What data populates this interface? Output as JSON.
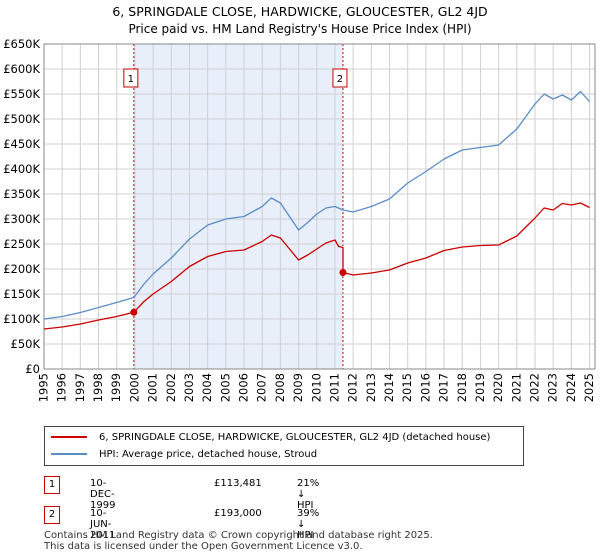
{
  "title_line1": "6, SPRINGDALE CLOSE, HARDWICKE, GLOUCESTER, GL2 4JD",
  "title_line2": "Price paid vs. HM Land Registry's House Price Index (HPI)",
  "colors": {
    "red": "#cc0000",
    "blue": "#5b8ec7",
    "shade": "#e8eefa",
    "grid": "#d0d0d0",
    "marker_border": "#cc0000"
  },
  "chart_data": {
    "type": "line",
    "title": "Price paid vs. HM Land Registry's House Price Index (HPI)",
    "xlabel": "",
    "ylabel": "",
    "xlim": [
      1995.0,
      2025.3
    ],
    "ylim": [
      0,
      650000
    ],
    "y_ticks": [
      0,
      50000,
      100000,
      150000,
      200000,
      250000,
      300000,
      350000,
      400000,
      450000,
      500000,
      550000,
      600000,
      650000
    ],
    "y_tick_labels": [
      "£0",
      "£50K",
      "£100K",
      "£150K",
      "£200K",
      "£250K",
      "£300K",
      "£350K",
      "£400K",
      "£450K",
      "£500K",
      "£550K",
      "£600K",
      "£650K"
    ],
    "x_ticks": [
      1995,
      1996,
      1997,
      1998,
      1999,
      2000,
      2001,
      2002,
      2003,
      2004,
      2005,
      2006,
      2007,
      2008,
      2009,
      2010,
      2011,
      2012,
      2013,
      2014,
      2015,
      2016,
      2017,
      2018,
      2019,
      2020,
      2021,
      2022,
      2023,
      2024,
      2025
    ],
    "x_tick_labels": [
      "1995",
      "1996",
      "1997",
      "1998",
      "1999",
      "2000",
      "2001",
      "2002",
      "2003",
      "2004",
      "2005",
      "2006",
      "2007",
      "2008",
      "2009",
      "2010",
      "2011",
      "2012",
      "2013",
      "2014",
      "2015",
      "2016",
      "2017",
      "2018",
      "2019",
      "2020",
      "2021",
      "2022",
      "2023",
      "2024",
      "2025"
    ],
    "shaded_region": [
      1999.94,
      2011.44
    ],
    "series": [
      {
        "name": "6, SPRINGDALE CLOSE, HARDWICKE, GLOUCESTER, GL2 4JD (detached house)",
        "color": "#cc0000",
        "x": [
          1995.0,
          1996.0,
          1997.0,
          1998.0,
          1999.0,
          1999.94,
          2000.5,
          2001.0,
          2002.0,
          2003.0,
          2004.0,
          2005.0,
          2006.0,
          2007.0,
          2007.5,
          2008.0,
          2008.5,
          2009.0,
          2009.5,
          2010.0,
          2010.5,
          2011.0,
          2011.2,
          2011.44,
          2011.44,
          2012.0,
          2013.0,
          2014.0,
          2015.0,
          2016.0,
          2017.0,
          2018.0,
          2019.0,
          2020.0,
          2021.0,
          2022.0,
          2022.5,
          2023.0,
          2023.5,
          2024.0,
          2024.5,
          2025.0
        ],
        "y": [
          80000,
          84000,
          90000,
          98000,
          105000,
          113481,
          135000,
          150000,
          175000,
          205000,
          225000,
          235000,
          238000,
          255000,
          268000,
          262000,
          240000,
          218000,
          228000,
          240000,
          252000,
          258000,
          245000,
          243000,
          193000,
          188000,
          192000,
          198000,
          212000,
          222000,
          237000,
          244000,
          247000,
          248000,
          266000,
          302000,
          322000,
          318000,
          331000,
          328000,
          332000,
          323000
        ]
      },
      {
        "name": "HPI: Average price, detached house, Stroud",
        "color": "#5b8ec7",
        "x": [
          1995.0,
          1996.0,
          1997.0,
          1998.0,
          1999.0,
          1999.94,
          2000.5,
          2001.0,
          2002.0,
          2003.0,
          2004.0,
          2005.0,
          2006.0,
          2007.0,
          2007.5,
          2008.0,
          2008.5,
          2009.0,
          2009.5,
          2010.0,
          2010.5,
          2011.0,
          2011.44,
          2012.0,
          2013.0,
          2014.0,
          2015.0,
          2016.0,
          2017.0,
          2018.0,
          2019.0,
          2020.0,
          2021.0,
          2022.0,
          2022.5,
          2023.0,
          2023.5,
          2024.0,
          2024.5,
          2025.0
        ],
        "y": [
          100000,
          105000,
          113000,
          123000,
          133000,
          143000,
          170000,
          190000,
          222000,
          260000,
          288000,
          300000,
          305000,
          325000,
          342000,
          332000,
          305000,
          278000,
          293000,
          310000,
          322000,
          325000,
          318000,
          314000,
          325000,
          340000,
          372000,
          395000,
          420000,
          438000,
          443000,
          448000,
          480000,
          530000,
          550000,
          540000,
          548000,
          538000,
          555000,
          535000
        ]
      }
    ],
    "annotations": [
      {
        "label": "1",
        "x": 1999.94,
        "y": 113481
      },
      {
        "label": "2",
        "x": 2011.44,
        "y": 193000
      }
    ]
  },
  "legend": {
    "red_label": "6, SPRINGDALE CLOSE, HARDWICKE, GLOUCESTER, GL2 4JD (detached house)",
    "blue_label": "HPI: Average price, detached house, Stroud"
  },
  "transactions": [
    {
      "id": "1",
      "date": "10-DEC-1999",
      "price": "£113,481",
      "hpi": "21% ↓ HPI"
    },
    {
      "id": "2",
      "date": "10-JUN-2011",
      "price": "£193,000",
      "hpi": "39% ↓ HPI"
    }
  ],
  "footer": {
    "line1": "Contains HM Land Registry data © Crown copyright and database right 2025.",
    "line2": "This data is licensed under the Open Government Licence v3.0."
  }
}
